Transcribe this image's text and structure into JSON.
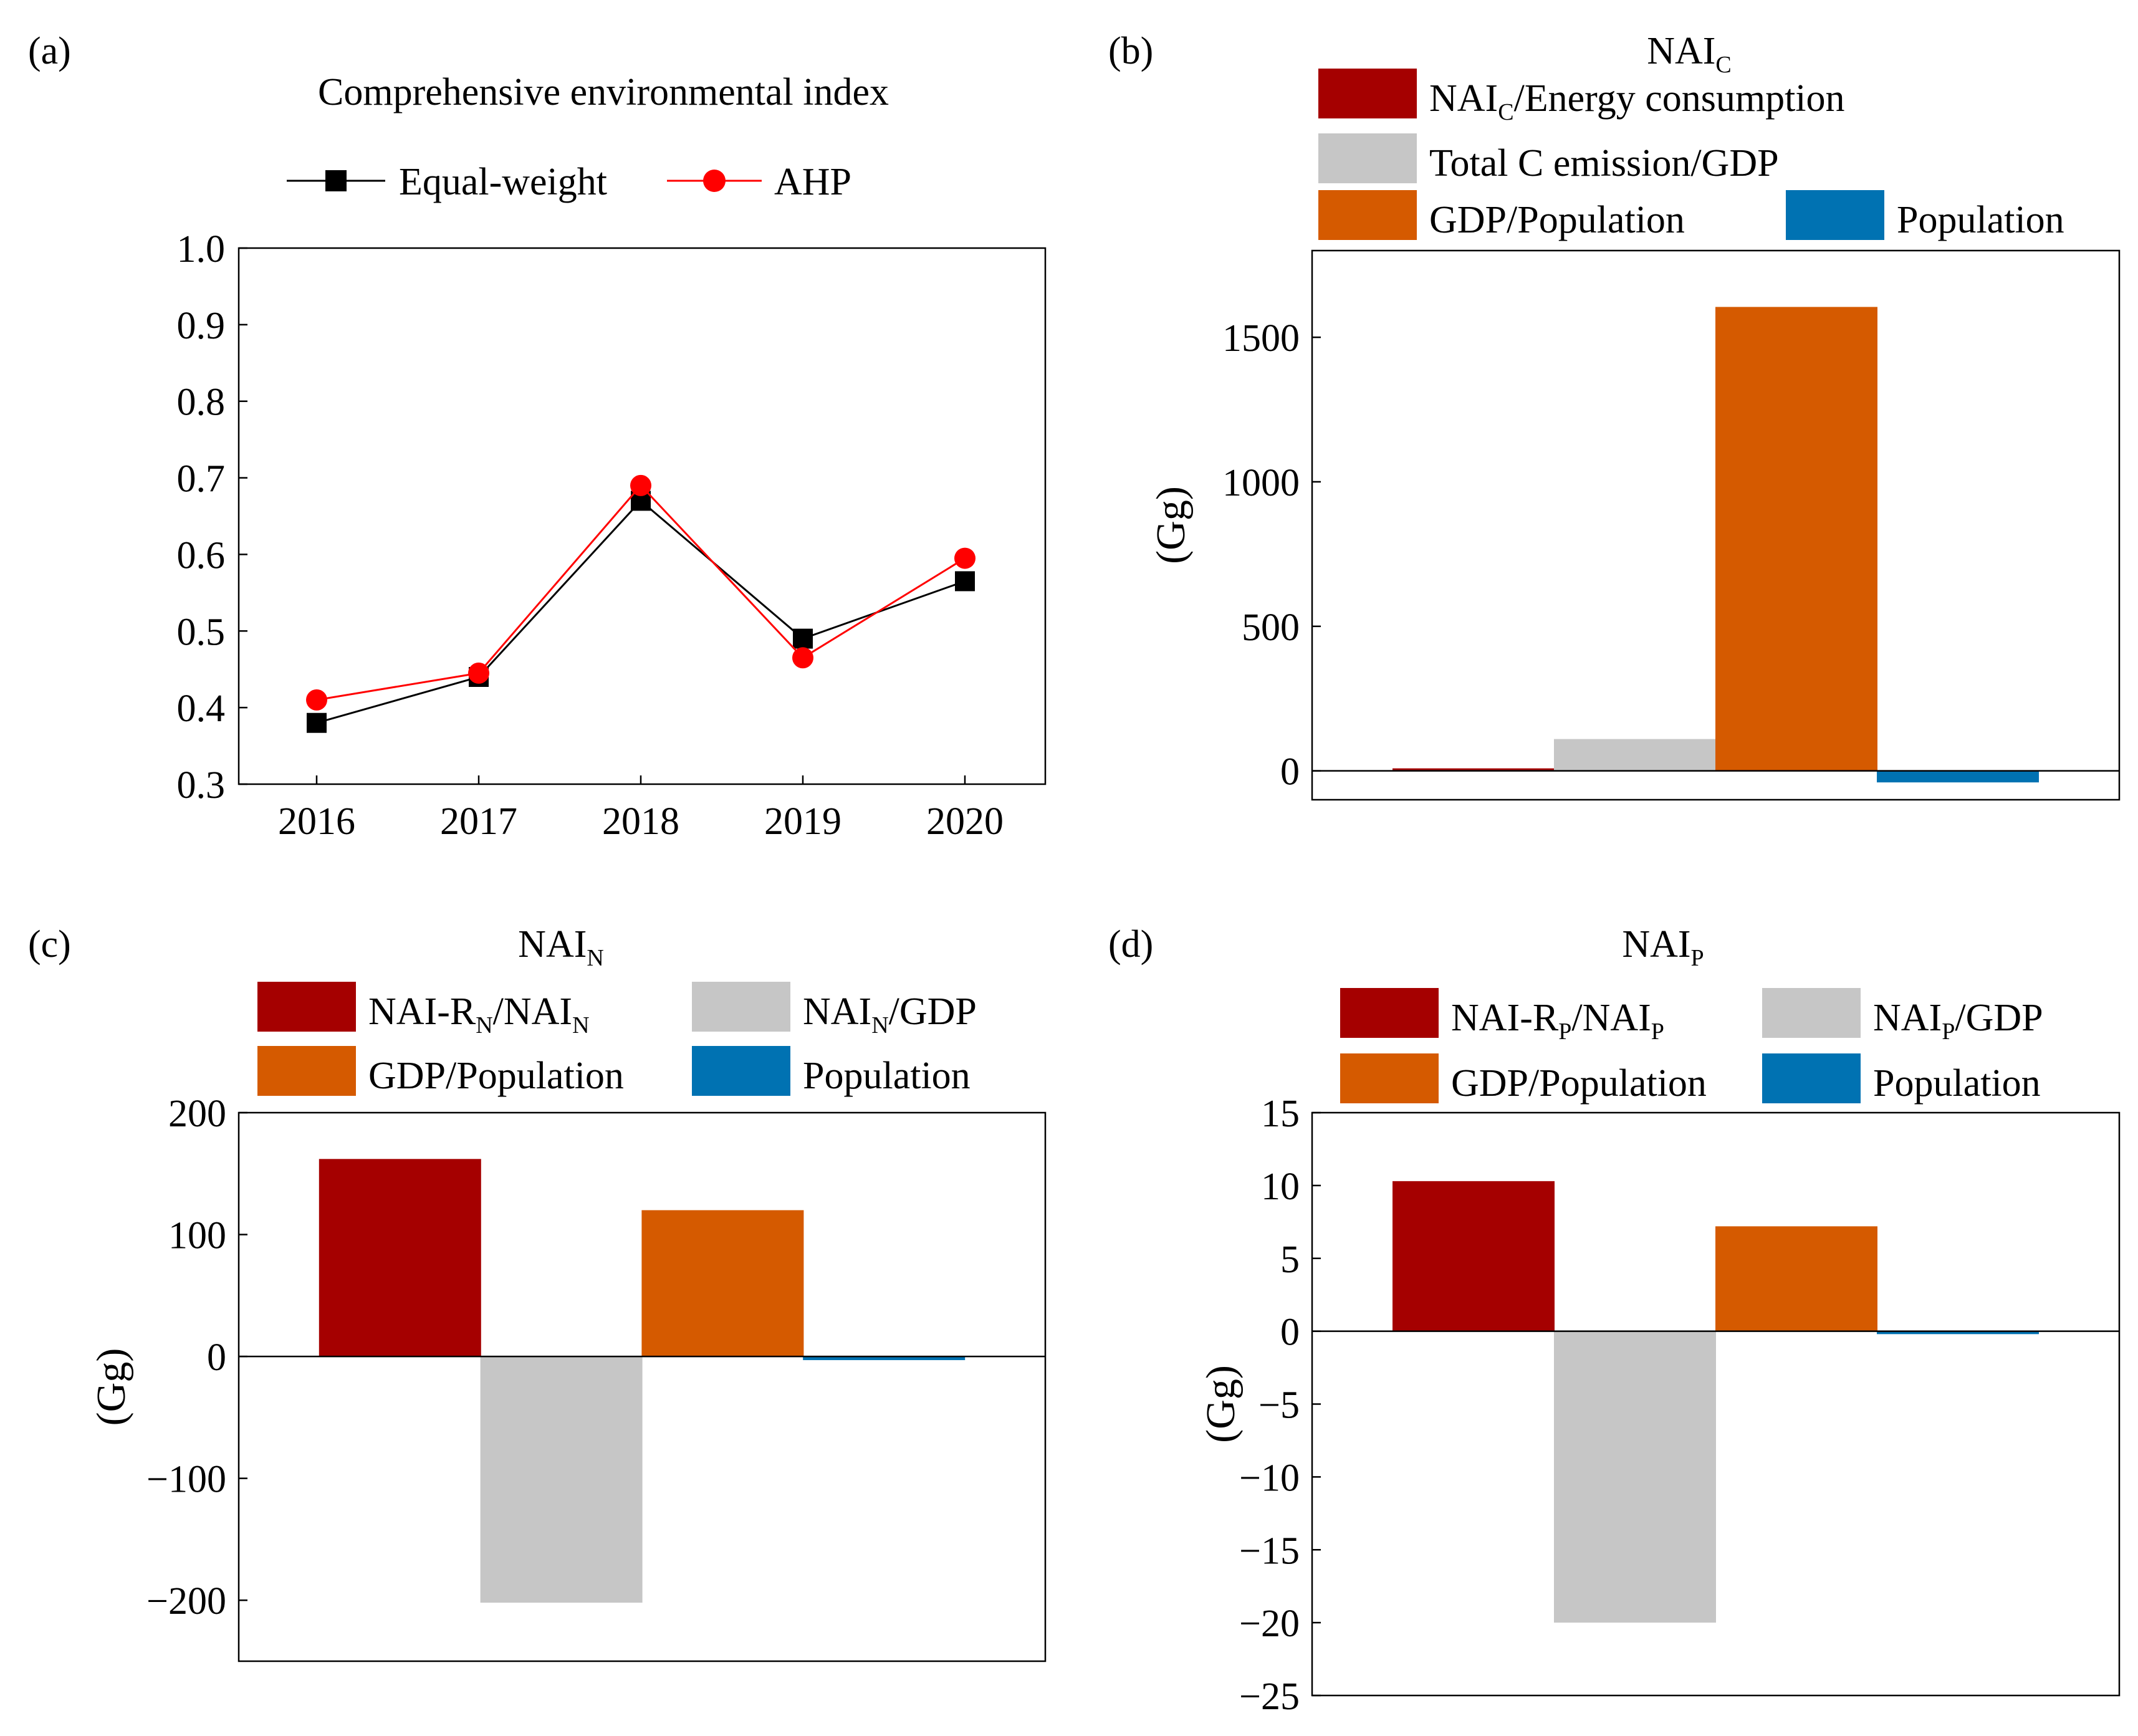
{
  "chart_data": [
    {
      "panel": "(a)",
      "type": "line",
      "title": "Comprehensive environmental index",
      "x": [
        "2016",
        "2017",
        "2018",
        "2019",
        "2020"
      ],
      "ylim": [
        0.3,
        1.0
      ],
      "yticks": [
        "0.3",
        "0.4",
        "0.5",
        "0.6",
        "0.7",
        "0.8",
        "0.9",
        "1.0"
      ],
      "xlabel": "",
      "ylabel": "",
      "legend_position": "top",
      "series": [
        {
          "name": "Equal-weight",
          "marker": "square",
          "color": "#000000",
          "values": [
            0.38,
            0.44,
            0.67,
            0.49,
            0.565
          ]
        },
        {
          "name": "AHP",
          "marker": "circle",
          "color": "#ff0000",
          "values": [
            0.41,
            0.445,
            0.69,
            0.465,
            0.595
          ]
        }
      ]
    },
    {
      "panel": "(b)",
      "type": "bar",
      "title_base": "NAI",
      "title_sub": "C",
      "ylabel": "(Gg)",
      "ylim": [
        -100,
        1800
      ],
      "yticks": [
        "0",
        "500",
        "1000",
        "1500"
      ],
      "legend_position": "top",
      "legend": [
        {
          "base": "NAI",
          "sub": "C",
          "rest": "/Energy consumption",
          "color": "#a50000"
        },
        {
          "base": "Total C emission/GDP",
          "sub": "",
          "rest": "",
          "color": "#c6c6c6"
        },
        {
          "base": "GDP/Population",
          "sub": "",
          "rest": "",
          "color": "#d55a00"
        },
        {
          "base": "Population",
          "sub": "",
          "rest": "",
          "color": "#0072b2"
        }
      ],
      "categories": [
        "NAI_C/Energy consumption",
        "Total C emission/GDP",
        "GDP/Population",
        "Population"
      ],
      "values": [
        8,
        110,
        1605,
        -40
      ]
    },
    {
      "panel": "(c)",
      "type": "bar",
      "title_base": "NAI",
      "title_sub": "N",
      "ylabel": "(Gg)",
      "ylim": [
        -250,
        200
      ],
      "yticks": [
        "−200",
        "−100",
        "0",
        "100",
        "200"
      ],
      "legend_position": "top",
      "legend": [
        {
          "base": "NAI-R",
          "sub": "N",
          "rest": "/NAI",
          "sub2": "N",
          "color": "#a50000"
        },
        {
          "base": "NAI",
          "sub": "N",
          "rest": "/GDP",
          "color": "#c6c6c6"
        },
        {
          "base": "GDP/Population",
          "sub": "",
          "rest": "",
          "color": "#d55a00"
        },
        {
          "base": "Population",
          "sub": "",
          "rest": "",
          "color": "#0072b2"
        }
      ],
      "categories": [
        "NAI-R_N/NAI_N",
        "NAI_N/GDP",
        "GDP/Population",
        "Population"
      ],
      "values": [
        162,
        -202,
        120,
        -3
      ]
    },
    {
      "panel": "(d)",
      "type": "bar",
      "title_base": "NAI",
      "title_sub": "P",
      "ylabel": "(Gg)",
      "ylim": [
        -25,
        15
      ],
      "yticks": [
        "−25",
        "−20",
        "−15",
        "−10",
        "−5",
        "0",
        "5",
        "10",
        "15"
      ],
      "legend_position": "top",
      "legend": [
        {
          "base": "NAI-R",
          "sub": "P",
          "rest": "/NAI",
          "sub2": "P",
          "color": "#a50000"
        },
        {
          "base": "NAI",
          "sub": "P",
          "rest": "/GDP",
          "color": "#c6c6c6"
        },
        {
          "base": "GDP/Population",
          "sub": "",
          "rest": "",
          "color": "#d55a00"
        },
        {
          "base": "Population",
          "sub": "",
          "rest": "",
          "color": "#0072b2"
        }
      ],
      "categories": [
        "NAI-R_P/NAI_P",
        "NAI_P/GDP",
        "GDP/Population",
        "Population"
      ],
      "values": [
        10.3,
        -20,
        7.2,
        -0.2
      ]
    }
  ]
}
